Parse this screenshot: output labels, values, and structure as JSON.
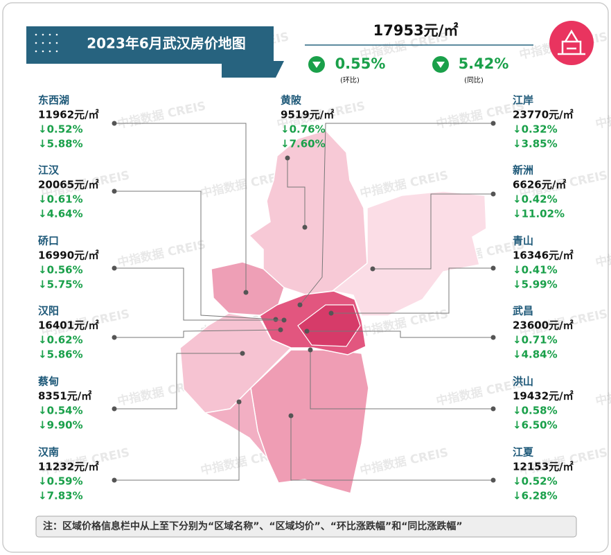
{
  "header": {
    "title": "2023年6月武汉房价地图",
    "avg_price": "17953元/㎡",
    "mom": "0.55%",
    "mom_label": "(环比)",
    "yoy": "5.42%",
    "yoy_label": "(同比)"
  },
  "watermark": "中指数据 CREIS",
  "districts": [
    {
      "name": "东西湖",
      "price": "11962元/㎡",
      "mom": "↓0.52%",
      "yoy": "↓5.88%"
    },
    {
      "name": "江汉",
      "price": "20065元/㎡",
      "mom": "↓0.61%",
      "yoy": "↓4.64%"
    },
    {
      "name": "硚口",
      "price": "16990元/㎡",
      "mom": "↓0.56%",
      "yoy": "↓5.75%"
    },
    {
      "name": "汉阳",
      "price": "16401元/㎡",
      "mom": "↓0.62%",
      "yoy": "↓5.86%"
    },
    {
      "name": "蔡甸",
      "price": "8351元/㎡",
      "mom": "↓0.54%",
      "yoy": "↓9.90%"
    },
    {
      "name": "汉南",
      "price": "11232元/㎡",
      "mom": "↓0.59%",
      "yoy": "↓7.83%"
    },
    {
      "name": "黄陂",
      "price": "9519元/㎡",
      "mom": "↓0.76%",
      "yoy": "↓7.60%"
    },
    {
      "name": "江岸",
      "price": "23770元/㎡",
      "mom": "↓0.32%",
      "yoy": "↓3.85%"
    },
    {
      "name": "新洲",
      "price": "6626元/㎡",
      "mom": "↓0.42%",
      "yoy": "↓11.02%"
    },
    {
      "name": "青山",
      "price": "16346元/㎡",
      "mom": "↓0.41%",
      "yoy": "↓5.99%"
    },
    {
      "name": "武昌",
      "price": "23600元/㎡",
      "mom": "↓0.71%",
      "yoy": "↓4.84%"
    },
    {
      "name": "洪山",
      "price": "19432元/㎡",
      "mom": "↓0.58%",
      "yoy": "↓6.50%"
    },
    {
      "name": "江夏",
      "price": "12153元/㎡",
      "mom": "↓0.52%",
      "yoy": "↓6.28%"
    }
  ],
  "note": "注：区域价格信息栏中从上至下分别为“区域名称”、“区域均价”、“环比涨跌幅”和“同比涨跌幅”"
}
